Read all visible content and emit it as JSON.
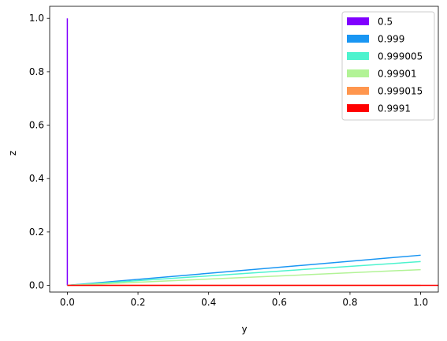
{
  "chart_data": {
    "type": "line",
    "xlabel": "y",
    "ylabel": "z",
    "xlim": [
      -0.05,
      1.05
    ],
    "ylim": [
      -0.025,
      1.045
    ],
    "x_ticks": [
      0.0,
      0.2,
      0.4,
      0.6,
      0.8,
      1.0
    ],
    "x_tick_labels": [
      "0.0",
      "0.2",
      "0.4",
      "0.6",
      "0.8",
      "1.0"
    ],
    "y_ticks": [
      0.0,
      0.2,
      0.4,
      0.6,
      0.8,
      1.0
    ],
    "y_tick_labels": [
      "0.0",
      "0.2",
      "0.4",
      "0.6",
      "0.8",
      "1.0"
    ],
    "grid": false,
    "legend_position": "top-right",
    "series": [
      {
        "name": "0.5",
        "color": "#8000ff",
        "x": [
          0,
          0
        ],
        "y": [
          0,
          1
        ]
      },
      {
        "name": "0.999",
        "color": "#1996f3",
        "x": [
          0,
          1.0
        ],
        "y": [
          0,
          0.113
        ]
      },
      {
        "name": "0.999005",
        "color": "#4df3ce",
        "x": [
          0,
          1.0
        ],
        "y": [
          0,
          0.089
        ]
      },
      {
        "name": "0.99901",
        "color": "#b2f396",
        "x": [
          0,
          1.0
        ],
        "y": [
          0,
          0.059
        ]
      },
      {
        "name": "0.999015",
        "color": "#ff964e",
        "x": [
          0,
          1.0
        ],
        "y": [
          0,
          0.0
        ]
      },
      {
        "name": "0.9991",
        "color": "#ff0000",
        "x": [
          0,
          1.05
        ],
        "y": [
          0,
          0.0
        ]
      }
    ]
  }
}
